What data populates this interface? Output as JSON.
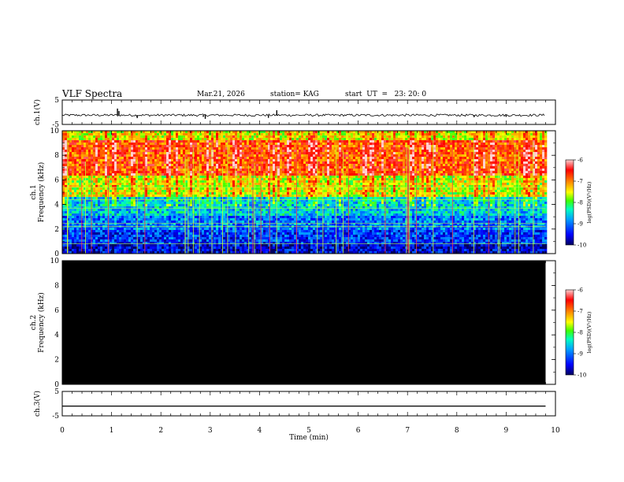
{
  "header": {
    "title": "VLF Spectra",
    "date": "Mar.21, 2026",
    "station": "station= KAG",
    "start": "start  UT  =   23: 20: 0"
  },
  "chart_data": [
    {
      "type": "line",
      "panel": "ch1-waveform",
      "ylabel": "ch.1(V)",
      "ylim": [
        -5,
        5
      ],
      "yticks": [
        5,
        -5
      ],
      "xlim": [
        0,
        10
      ],
      "baseline_value": -1.2,
      "spikes": [
        {
          "x": 1.12,
          "y": 1.5
        },
        {
          "x": 1.15,
          "y": 0.5
        },
        {
          "x": 1.52,
          "y": -2.4
        },
        {
          "x": 2.86,
          "y": -1.9
        },
        {
          "x": 2.9,
          "y": -2.7
        },
        {
          "x": 4.18,
          "y": -2.3
        },
        {
          "x": 4.35,
          "y": 0.8
        },
        {
          "x": 8.35,
          "y": -2.0
        },
        {
          "x": 9.0,
          "y": -1.9
        }
      ]
    },
    {
      "type": "heatmap",
      "panel": "ch1-spectrogram",
      "ylabel": "ch.1\nFrequency (kHz)",
      "ylim": [
        0,
        10
      ],
      "yticks": [
        0,
        2,
        4,
        6,
        8,
        10
      ],
      "xlim": [
        0,
        10
      ],
      "data_xmax": 9.8,
      "colorbar": {
        "label": "log(PSD)(V²/Hz)",
        "ticks": [
          -6,
          -7,
          -8,
          -9,
          -10
        ],
        "range": [
          -10,
          -6
        ]
      },
      "description_bands_khz": [
        {
          "from": 0,
          "to": 0.8,
          "level": -9.6
        },
        {
          "from": 0.8,
          "to": 2.0,
          "level": -9.3
        },
        {
          "from": 2.0,
          "to": 3.2,
          "level": -9.0
        },
        {
          "from": 3.2,
          "to": 4.8,
          "level": -8.6
        },
        {
          "from": 4.8,
          "to": 6.4,
          "level": -7.6
        },
        {
          "from": 6.4,
          "to": 9.4,
          "level": -6.8
        },
        {
          "from": 9.4,
          "to": 10,
          "level": -7.5
        }
      ]
    },
    {
      "type": "heatmap",
      "panel": "ch2-spectrogram",
      "ylabel": "ch.2\nFrequency (kHz)",
      "ylim": [
        0,
        10
      ],
      "yticks": [
        0,
        2,
        4,
        6,
        8,
        10
      ],
      "xlim": [
        0,
        10
      ],
      "data_xmax": 9.8,
      "colorbar": {
        "label": "log(PSD)(V²/Hz)",
        "ticks": [
          -6,
          -7,
          -8,
          -9,
          -10
        ],
        "range": [
          -10,
          -6
        ]
      }
    },
    {
      "type": "line",
      "panel": "ch3-waveform",
      "ylabel": "ch.3(V)",
      "ylim": [
        -5,
        5
      ],
      "yticks": [
        5,
        -5
      ],
      "xlim": [
        0,
        10
      ],
      "baseline_value": -1.0
    }
  ],
  "xaxis": {
    "label": "Time  (min)",
    "ticks": [
      0,
      1,
      2,
      3,
      4,
      5,
      6,
      7,
      8,
      9,
      10
    ]
  },
  "colors": {
    "colormap": [
      "#000080",
      "#0000ff",
      "#0080ff",
      "#00ffff",
      "#00ff00",
      "#ffff00",
      "#ff8000",
      "#ff0000",
      "#ffffff"
    ],
    "ch2_fill": "#000000"
  }
}
